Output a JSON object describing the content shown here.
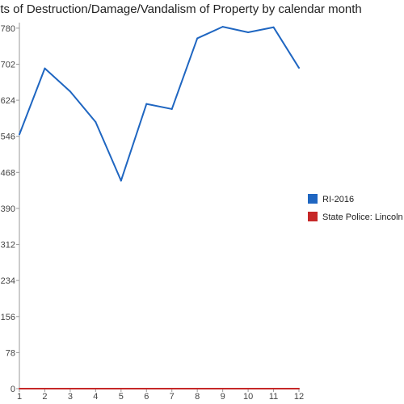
{
  "chart_data": {
    "type": "line",
    "title": "nts of Destruction/Damage/Vandalism of Property by calendar month",
    "xlabel": "",
    "ylabel": "",
    "x": [
      1,
      2,
      3,
      4,
      5,
      6,
      7,
      8,
      9,
      10,
      11,
      12
    ],
    "x_tick_labels": [
      "1",
      "2",
      "3",
      "4",
      "5",
      "6",
      "7",
      "8",
      "9",
      "10",
      "11",
      "12"
    ],
    "y_ticks": [
      0,
      78,
      156,
      234,
      312,
      390,
      468,
      546,
      624,
      702,
      780
    ],
    "y_tick_labels": [
      "0",
      "78",
      "156",
      "234",
      "312",
      "390",
      "468",
      "546",
      "624",
      "702",
      "780"
    ],
    "ylim": [
      0,
      785
    ],
    "xlim": [
      1,
      12
    ],
    "grid": false,
    "legend_position": "right",
    "series": [
      {
        "name": "RI-2016",
        "color": "#1f66c1",
        "values": [
          550,
          693,
          643,
          577,
          450,
          616,
          605,
          758,
          783,
          771,
          782,
          694
        ]
      },
      {
        "name": "State Police: Lincoln",
        "color": "#c62828",
        "values": [
          0,
          0,
          0,
          0,
          0,
          0,
          0,
          0,
          0,
          0,
          0,
          0
        ]
      }
    ]
  }
}
